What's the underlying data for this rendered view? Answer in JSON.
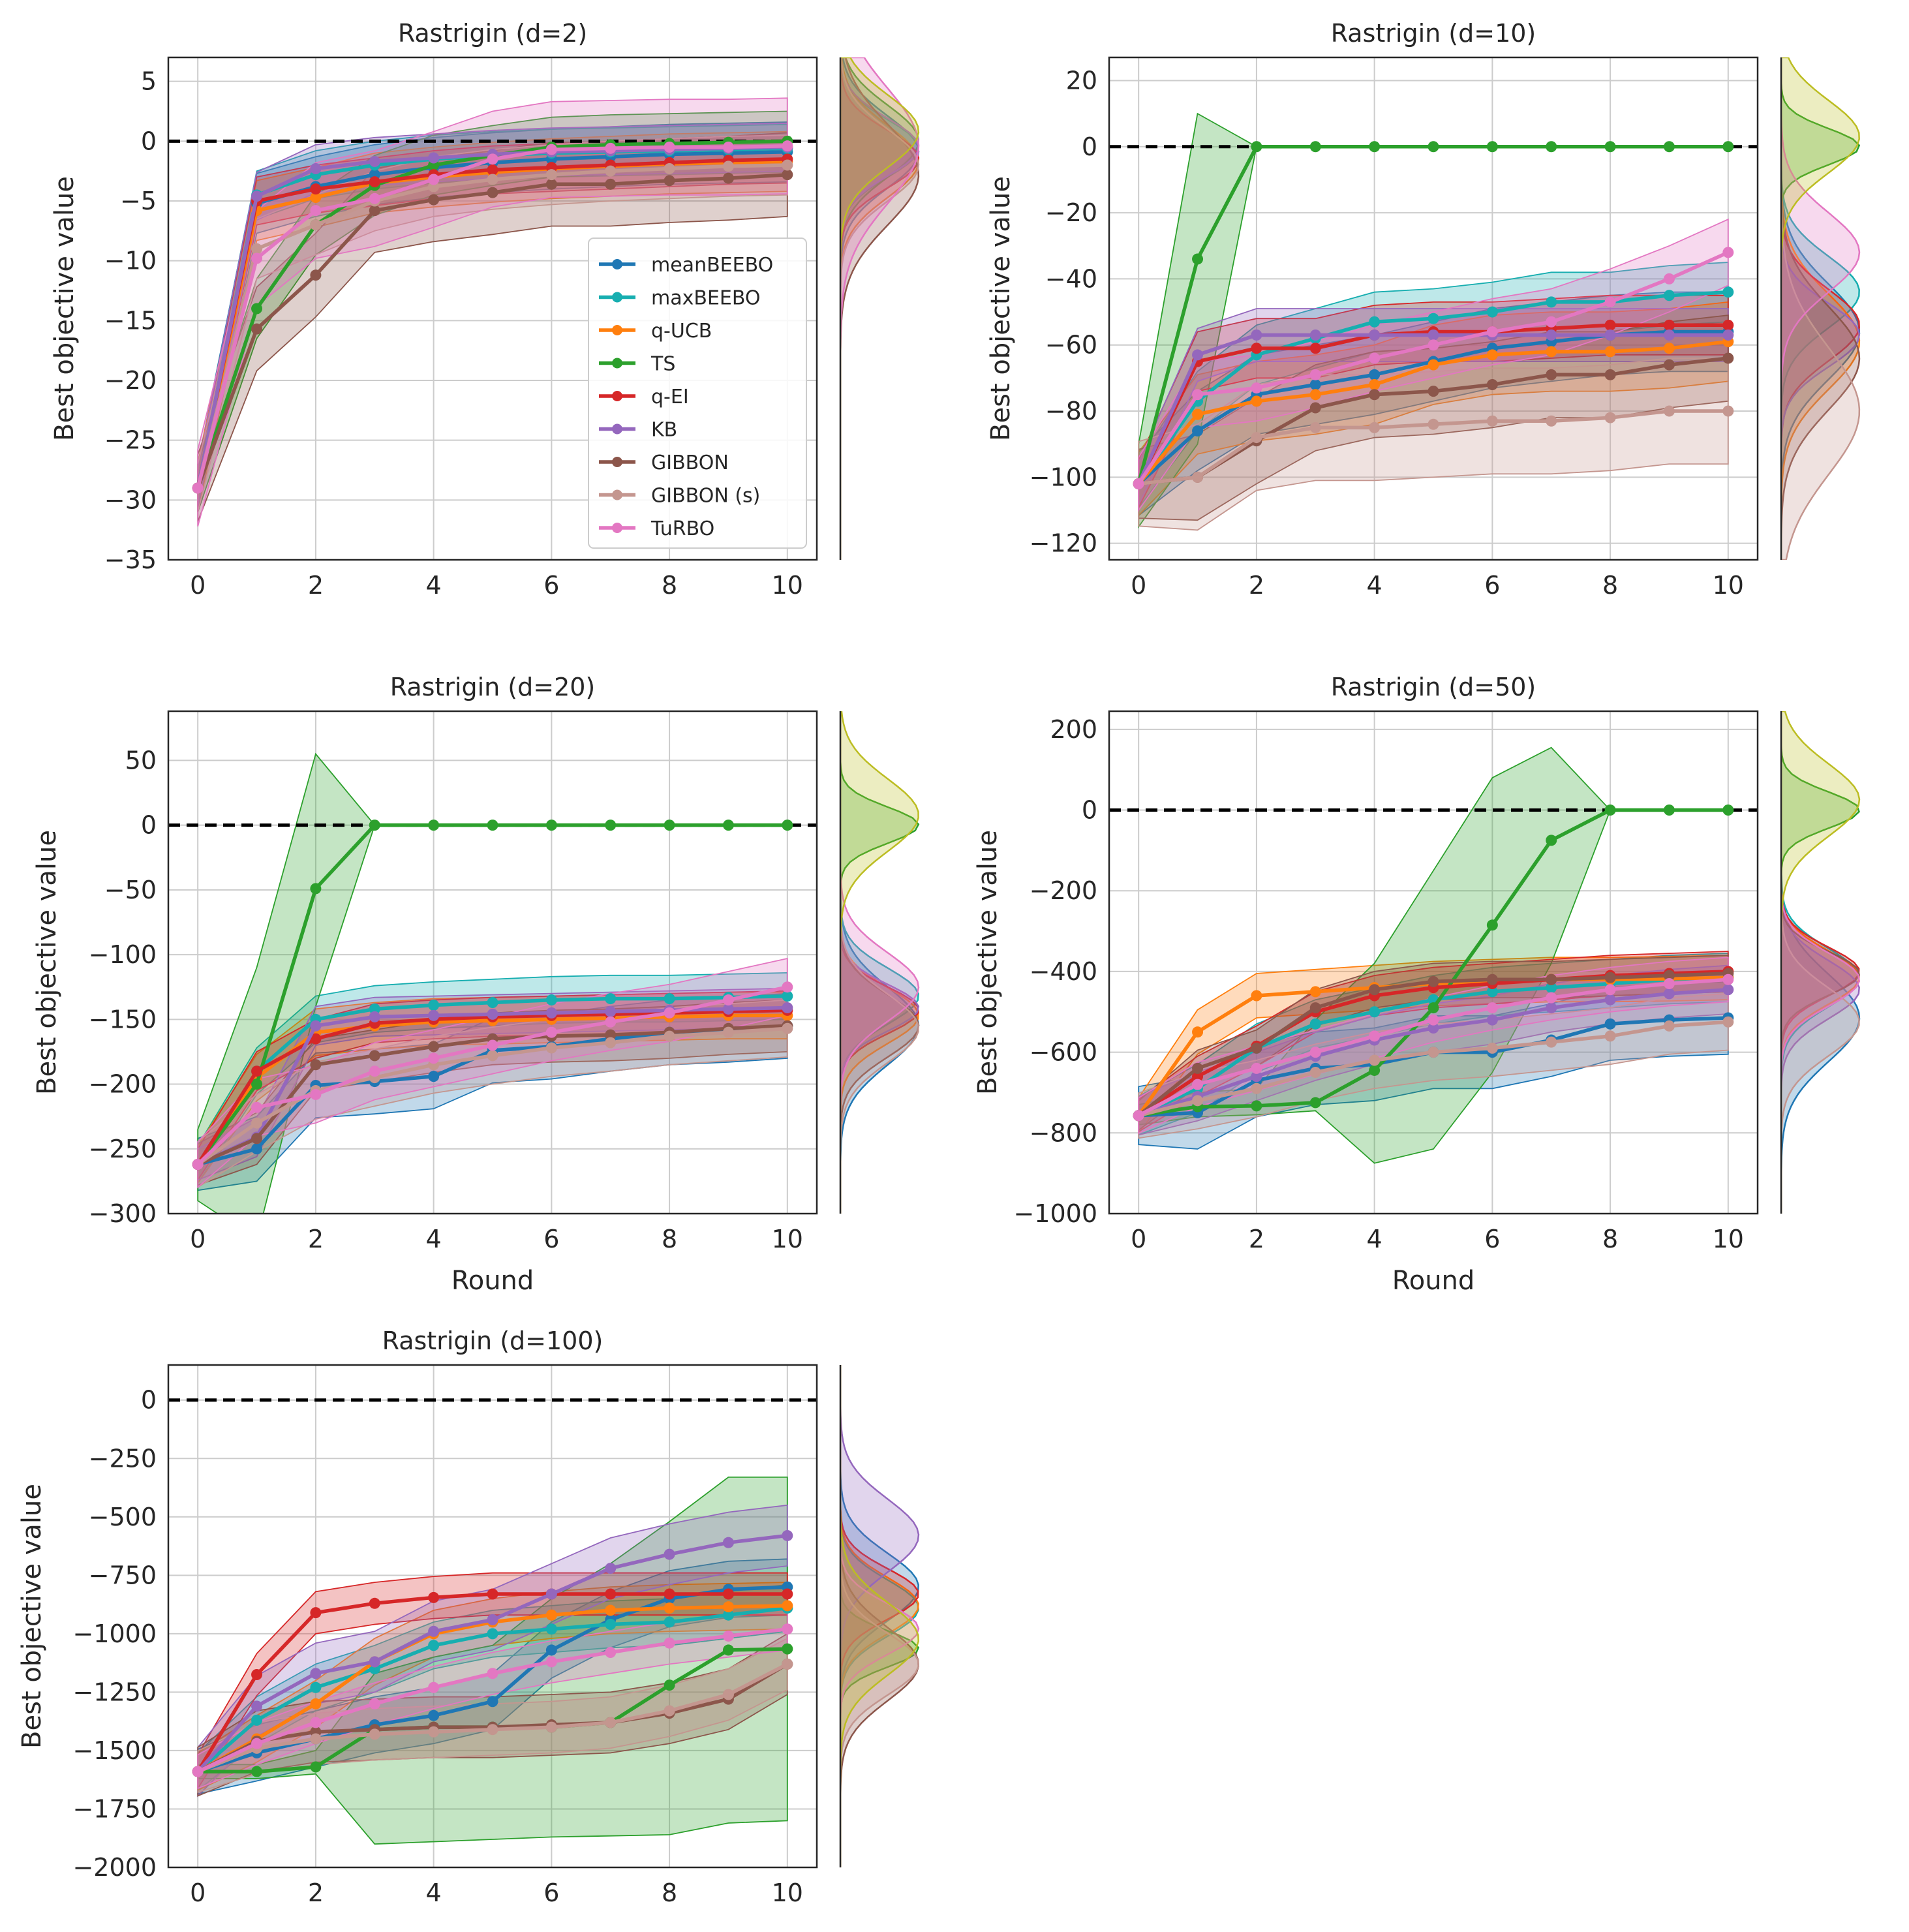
{
  "figure": {
    "ylabel": "Best objective value",
    "xlabel": "Round",
    "legend": {
      "placement": "inside first panel, lower-right",
      "entries": [
        {
          "method": "meanBEEBO"
        },
        {
          "method": "maxBEEBO"
        },
        {
          "method": "q-UCB"
        },
        {
          "method": "TS"
        },
        {
          "method": "q-EI"
        },
        {
          "method": "KB"
        },
        {
          "method": "GIBBON"
        },
        {
          "method": "GIBBON (s)"
        },
        {
          "method": "TuRBO"
        }
      ]
    }
  },
  "colors": {
    "meanBEEBO": "#1f77b4",
    "maxBEEBO": "#17aeb0",
    "q-UCB": "#ff7f0e",
    "TS": "#2ca02c",
    "q-EI": "#d62728",
    "KB": "#9467bd",
    "GIBBON": "#8c564b",
    "GIBBON (s)": "#c4968f",
    "TuRBO": "#e377c2",
    "KDEExtra": "#bcbd22"
  },
  "chart_data": [
    {
      "type": "line",
      "title": "Rastrigin (d=2)",
      "xlabel": "",
      "ylabel": "Best objective value",
      "xlim": [
        -0.5,
        10.5
      ],
      "ylim": [
        -35,
        7
      ],
      "xticks": [
        0,
        2,
        4,
        6,
        8,
        10
      ],
      "yticks": [
        5,
        0,
        -5,
        -10,
        -15,
        -20,
        -25,
        -30,
        -35
      ],
      "reference_line": 0,
      "show_xlabel": false,
      "x": [
        0,
        1,
        2,
        3,
        4,
        5,
        6,
        7,
        8,
        9,
        10
      ],
      "series": [
        {
          "name": "meanBEEBO",
          "values": [
            -29,
            -5.2,
            -3.8,
            -2.8,
            -2.2,
            -1.8,
            -1.5,
            -1.3,
            -1.1,
            -1.0,
            -0.9
          ],
          "band_width": 2.5
        },
        {
          "name": "maxBEEBO",
          "values": [
            -29,
            -4.5,
            -2.8,
            -2.0,
            -1.5,
            -1.2,
            -1.0,
            -0.9,
            -0.8,
            -0.7,
            -0.6
          ],
          "band_width": 2.0
        },
        {
          "name": "q-UCB",
          "values": [
            -29,
            -5.8,
            -4.7,
            -3.5,
            -3.0,
            -2.6,
            -2.3,
            -2.1,
            -1.9,
            -1.8,
            -1.7
          ],
          "band_width": 2.5
        },
        {
          "name": "TS",
          "values": [
            -29,
            -14,
            -7,
            -3.7,
            -2.0,
            -1.2,
            -0.5,
            -0.3,
            -0.2,
            -0.1,
            0
          ],
          "band_width": 2.5
        },
        {
          "name": "q-EI",
          "values": [
            -29,
            -5,
            -4,
            -3.4,
            -2.8,
            -2.4,
            -2.2,
            -2.0,
            -1.8,
            -1.6,
            -1.5
          ],
          "band_width": 2.0
        },
        {
          "name": "KB",
          "values": [
            -29,
            -4.6,
            -2.3,
            -1.7,
            -1.4,
            -1.1,
            -0.9,
            -0.8,
            -0.7,
            -0.6,
            -0.5
          ],
          "band_width": 2.0
        },
        {
          "name": "GIBBON",
          "values": [
            -29,
            -15.7,
            -11.2,
            -5.8,
            -4.9,
            -4.3,
            -3.6,
            -3.6,
            -3.3,
            -3.1,
            -2.8
          ],
          "band_width": 3.5
        },
        {
          "name": "GIBBON (s)",
          "values": [
            -29,
            -9,
            -7,
            -5,
            -3.8,
            -3.2,
            -2.8,
            -2.5,
            -2.3,
            -2.1,
            -2.0
          ],
          "band_width": 2.5
        },
        {
          "name": "TuRBO",
          "values": [
            -29,
            -9.8,
            -5.8,
            -4.8,
            -3.2,
            -1.5,
            -0.7,
            -0.6,
            -0.5,
            -0.5,
            -0.4
          ],
          "band_width": 4.0
        }
      ]
    },
    {
      "type": "line",
      "title": "Rastrigin (d=10)",
      "xlabel": "",
      "ylabel": "Best objective value",
      "xlim": [
        -0.5,
        10.5
      ],
      "ylim": [
        -125,
        27
      ],
      "xticks": [
        0,
        2,
        4,
        6,
        8,
        10
      ],
      "yticks": [
        20,
        0,
        -20,
        -40,
        -60,
        -80,
        -100,
        -120
      ],
      "reference_line": 0,
      "show_xlabel": false,
      "x": [
        0,
        1,
        2,
        3,
        4,
        5,
        6,
        7,
        8,
        9,
        10
      ],
      "series": [
        {
          "name": "meanBEEBO",
          "values": [
            -102,
            -86,
            -75,
            -72,
            -69,
            -65,
            -61,
            -59,
            -57,
            -56,
            -56
          ],
          "band_width": 12
        },
        {
          "name": "maxBEEBO",
          "values": [
            -102,
            -77,
            -63,
            -58,
            -53,
            -52,
            -50,
            -47,
            -47,
            -45,
            -44
          ],
          "band_width": 9
        },
        {
          "name": "q-UCB",
          "values": [
            -102,
            -81,
            -77,
            -75,
            -72,
            -66,
            -63,
            -62,
            -62,
            -61,
            -59
          ],
          "band_width": 12
        },
        {
          "name": "TS",
          "values": [
            -102,
            -34,
            0,
            0,
            0,
            0,
            0,
            0,
            0,
            0,
            0
          ],
          "band_width": 0
        },
        {
          "name": "q-EI",
          "values": [
            -102,
            -65,
            -61,
            -61,
            -57,
            -56,
            -56,
            -55,
            -54,
            -54,
            -54
          ],
          "band_width": 9
        },
        {
          "name": "KB",
          "values": [
            -102,
            -63,
            -57,
            -57,
            -57,
            -57,
            -57,
            -57,
            -57,
            -57,
            -57
          ],
          "band_width": 8
        },
        {
          "name": "GIBBON",
          "values": [
            -102,
            -100,
            -89,
            -79,
            -75,
            -74,
            -72,
            -69,
            -69,
            -66,
            -64
          ],
          "band_width": 13
        },
        {
          "name": "GIBBON (s)",
          "values": [
            -102,
            -100,
            -88,
            -85,
            -85,
            -84,
            -83,
            -83,
            -82,
            -80,
            -80
          ],
          "band_width": 16
        },
        {
          "name": "TuRBO",
          "values": [
            -102,
            -75,
            -73,
            -69,
            -64,
            -60,
            -56,
            -53,
            -47,
            -40,
            -32
          ],
          "band_width": 10
        }
      ],
      "ts_band": {
        "lower": [
          -115,
          -90,
          0,
          0,
          0,
          0,
          0,
          0,
          0,
          0,
          0
        ],
        "upper": [
          -90,
          10,
          0,
          0,
          0,
          0,
          0,
          0,
          0,
          0,
          0
        ]
      }
    },
    {
      "type": "line",
      "title": "Rastrigin (d=20)",
      "xlabel": "Round",
      "ylabel": "Best objective value",
      "xlim": [
        -0.5,
        10.5
      ],
      "ylim": [
        -300,
        88
      ],
      "xticks": [
        0,
        2,
        4,
        6,
        8,
        10
      ],
      "yticks": [
        50,
        0,
        -50,
        -100,
        -150,
        -200,
        -250,
        -300
      ],
      "reference_line": 0,
      "show_xlabel": true,
      "x": [
        0,
        1,
        2,
        3,
        4,
        5,
        6,
        7,
        8,
        9,
        10
      ],
      "series": [
        {
          "name": "meanBEEBO",
          "values": [
            -262,
            -250,
            -201,
            -198,
            -194,
            -174,
            -171,
            -165,
            -160,
            -158,
            -155
          ],
          "band_width": 25
        },
        {
          "name": "maxBEEBO",
          "values": [
            -262,
            -190,
            -150,
            -142,
            -139,
            -137,
            -135,
            -134,
            -134,
            -133,
            -132
          ],
          "band_width": 18
        },
        {
          "name": "q-UCB",
          "values": [
            -262,
            -195,
            -160,
            -155,
            -152,
            -151,
            -150,
            -149,
            -148,
            -147,
            -147
          ],
          "band_width": 18
        },
        {
          "name": "TS",
          "values": [
            -262,
            -200,
            -49,
            0,
            0,
            0,
            0,
            0,
            0,
            0,
            0
          ],
          "band_width": 0
        },
        {
          "name": "q-EI",
          "values": [
            -262,
            -190,
            -165,
            -153,
            -150,
            -148,
            -147,
            -146,
            -145,
            -144,
            -143
          ],
          "band_width": 15
        },
        {
          "name": "KB",
          "values": [
            -262,
            -241,
            -155,
            -148,
            -147,
            -146,
            -145,
            -144,
            -143,
            -142,
            -141
          ],
          "band_width": 15
        },
        {
          "name": "GIBBON",
          "values": [
            -262,
            -242,
            -185,
            -178,
            -171,
            -165,
            -163,
            -162,
            -160,
            -157,
            -155
          ],
          "band_width": 20
        },
        {
          "name": "GIBBON (s)",
          "values": [
            -262,
            -230,
            -205,
            -195,
            -185,
            -178,
            -172,
            -168,
            -163,
            -160,
            -157
          ],
          "band_width": 22
        },
        {
          "name": "TuRBO",
          "values": [
            -262,
            -218,
            -208,
            -190,
            -180,
            -170,
            -160,
            -152,
            -145,
            -135,
            -125
          ],
          "band_width": 22
        }
      ],
      "ts_band": {
        "lower": [
          -290,
          -320,
          -140,
          0,
          0,
          0,
          0,
          0,
          0,
          0,
          0
        ],
        "upper": [
          -235,
          -110,
          55,
          0,
          0,
          0,
          0,
          0,
          0,
          0,
          0
        ]
      }
    },
    {
      "type": "line",
      "title": "Rastrigin (d=50)",
      "xlabel": "Round",
      "ylabel": "Best objective value",
      "xlim": [
        -0.5,
        10.5
      ],
      "ylim": [
        -1000,
        245
      ],
      "xticks": [
        0,
        2,
        4,
        6,
        8,
        10
      ],
      "yticks": [
        200,
        0,
        -200,
        -400,
        -600,
        -800,
        -1000
      ],
      "reference_line": 0,
      "show_xlabel": true,
      "x": [
        0,
        1,
        2,
        3,
        4,
        5,
        6,
        7,
        8,
        9,
        10
      ],
      "series": [
        {
          "name": "meanBEEBO",
          "values": [
            -757,
            -750,
            -670,
            -640,
            -630,
            -600,
            -600,
            -570,
            -530,
            -520,
            -515
          ],
          "band_width": 90
        },
        {
          "name": "maxBEEBO",
          "values": [
            -757,
            -690,
            -590,
            -530,
            -500,
            -470,
            -450,
            -440,
            -430,
            -420,
            -415
          ],
          "band_width": 60
        },
        {
          "name": "q-UCB",
          "values": [
            -757,
            -550,
            -460,
            -450,
            -440,
            -430,
            -425,
            -420,
            -420,
            -418,
            -415
          ],
          "band_width": 55
        },
        {
          "name": "TS",
          "values": [
            -757,
            -735,
            -733,
            -725,
            -645,
            -490,
            -285,
            -75,
            0,
            0,
            0
          ],
          "band_width": 0
        },
        {
          "name": "q-EI",
          "values": [
            -757,
            -660,
            -585,
            -500,
            -460,
            -440,
            -430,
            -420,
            -410,
            -405,
            -400
          ],
          "band_width": 50
        },
        {
          "name": "KB",
          "values": [
            -757,
            -710,
            -660,
            -610,
            -570,
            -540,
            -520,
            -490,
            -470,
            -455,
            -445
          ],
          "band_width": 60
        },
        {
          "name": "GIBBON",
          "values": [
            -757,
            -640,
            -590,
            -490,
            -445,
            -425,
            -420,
            -420,
            -415,
            -410,
            -405
          ],
          "band_width": 45
        },
        {
          "name": "GIBBON (s)",
          "values": [
            -757,
            -720,
            -690,
            -650,
            -620,
            -600,
            -590,
            -575,
            -560,
            -535,
            -525
          ],
          "band_width": 70
        },
        {
          "name": "TuRBO",
          "values": [
            -757,
            -680,
            -640,
            -600,
            -560,
            -520,
            -490,
            -465,
            -445,
            -430,
            -420
          ],
          "band_width": 55
        }
      ],
      "ts_band": {
        "lower": [
          -780,
          -760,
          -755,
          -745,
          -875,
          -840,
          -650,
          -380,
          0,
          0,
          0
        ],
        "upper": [
          -730,
          -700,
          -690,
          -520,
          -380,
          -150,
          80,
          155,
          0,
          0,
          0
        ]
      }
    },
    {
      "type": "line",
      "title": "Rastrigin (d=100)",
      "xlabel": "",
      "ylabel": "Best objective value",
      "xlim": [
        -0.5,
        10.5
      ],
      "ylim": [
        -2000,
        150
      ],
      "xticks": [
        0,
        2,
        4,
        6,
        8,
        10
      ],
      "yticks": [
        0,
        -250,
        -500,
        -750,
        -1000,
        -1250,
        -1500,
        -1750,
        -2000
      ],
      "reference_line": 0,
      "show_xlabel": false,
      "x": [
        0,
        1,
        2,
        3,
        4,
        5,
        6,
        7,
        8,
        9,
        10
      ],
      "series": [
        {
          "name": "meanBEEBO",
          "values": [
            -1590,
            -1510,
            -1450,
            -1390,
            -1350,
            -1290,
            -1070,
            -940,
            -850,
            -810,
            -800
          ],
          "band_width": 120
        },
        {
          "name": "maxBEEBO",
          "values": [
            -1590,
            -1370,
            -1230,
            -1150,
            -1050,
            -1000,
            -980,
            -960,
            -950,
            -920,
            -890
          ],
          "band_width": 100
        },
        {
          "name": "q-UCB",
          "values": [
            -1590,
            -1450,
            -1300,
            -1120,
            -1000,
            -950,
            -920,
            -900,
            -890,
            -885,
            -880
          ],
          "band_width": 100
        },
        {
          "name": "TS",
          "values": [
            -1590,
            -1590,
            -1570,
            -1410,
            -1400,
            -1400,
            -1400,
            -1380,
            -1220,
            -1070,
            -1065
          ],
          "band_width": 0
        },
        {
          "name": "q-EI",
          "values": [
            -1590,
            -1175,
            -910,
            -870,
            -845,
            -830,
            -830,
            -830,
            -830,
            -830,
            -830
          ],
          "band_width": 90
        },
        {
          "name": "KB",
          "values": [
            -1590,
            -1310,
            -1170,
            -1120,
            -990,
            -940,
            -830,
            -720,
            -660,
            -610,
            -580
          ],
          "band_width": 130
        },
        {
          "name": "GIBBON",
          "values": [
            -1590,
            -1460,
            -1420,
            -1410,
            -1400,
            -1400,
            -1390,
            -1380,
            -1340,
            -1280,
            -1130
          ],
          "band_width": 130
        },
        {
          "name": "GIBBON (s)",
          "values": [
            -1590,
            -1490,
            -1450,
            -1430,
            -1420,
            -1410,
            -1400,
            -1380,
            -1330,
            -1260,
            -1130
          ],
          "band_width": 110
        },
        {
          "name": "TuRBO",
          "values": [
            -1590,
            -1470,
            -1380,
            -1300,
            -1230,
            -1170,
            -1120,
            -1080,
            -1040,
            -1010,
            -980
          ],
          "band_width": 90
        }
      ],
      "ts_band": {
        "lower": [
          -1620,
          -1620,
          -1600,
          -1900,
          -1890,
          -1880,
          -1870,
          -1865,
          -1860,
          -1810,
          -1800
        ],
        "upper": [
          -1560,
          -1560,
          -1500,
          -1170,
          -1100,
          -1050,
          -850,
          -700,
          -520,
          -330,
          -330
        ]
      }
    }
  ]
}
